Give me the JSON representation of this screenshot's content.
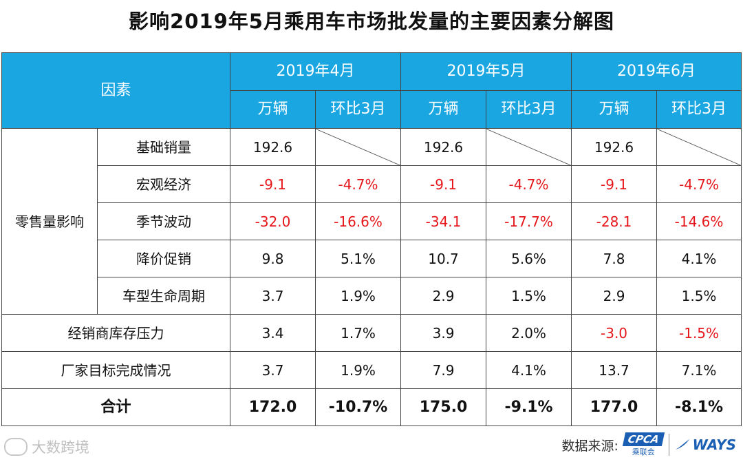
{
  "title": "影响2019年5月乘用车市场批发量的主要因素分解图",
  "header": {
    "factor": "因素",
    "months": [
      "2019年4月",
      "2019年5月",
      "2019年6月"
    ],
    "unit_col": "万辆",
    "mom_col": "环比3月"
  },
  "group_label": "零售量影响",
  "rows": [
    {
      "label": "基础销量",
      "values": [
        "192.6",
        "",
        "192.6",
        "",
        "192.6",
        ""
      ]
    },
    {
      "label": "宏观经济",
      "values": [
        "-9.1",
        "-4.7%",
        "-9.1",
        "-4.7%",
        "-9.1",
        "-4.7%"
      ]
    },
    {
      "label": "季节波动",
      "values": [
        "-32.0",
        "-16.6%",
        "-34.1",
        "-17.7%",
        "-28.1",
        "-14.6%"
      ]
    },
    {
      "label": "降价促销",
      "values": [
        "9.8",
        "5.1%",
        "10.7",
        "5.6%",
        "7.8",
        "4.1%"
      ]
    },
    {
      "label": "车型生命周期",
      "values": [
        "3.7",
        "1.9%",
        "2.9",
        "1.5%",
        "2.9",
        "1.5%"
      ]
    },
    {
      "label": "经销商库存压力",
      "values": [
        "3.4",
        "1.7%",
        "3.9",
        "2.0%",
        "-3.0",
        "-1.5%"
      ]
    },
    {
      "label": "厂家目标完成情况",
      "values": [
        "3.7",
        "1.9%",
        "7.9",
        "4.1%",
        "13.7",
        "7.1%"
      ]
    }
  ],
  "total": {
    "label": "合计",
    "values": [
      "172.0",
      "-10.7%",
      "175.0",
      "-9.1%",
      "177.0",
      "-8.1%"
    ]
  },
  "colors": {
    "header_bg": "#1aa6e0",
    "negative": "#e5171b"
  },
  "footer": {
    "watermark": "大数跨境",
    "source_label": "数据来源:",
    "cpca_logo": "CPCA",
    "cpca_sub": "乘联会",
    "ways_logo": "WAYS"
  }
}
